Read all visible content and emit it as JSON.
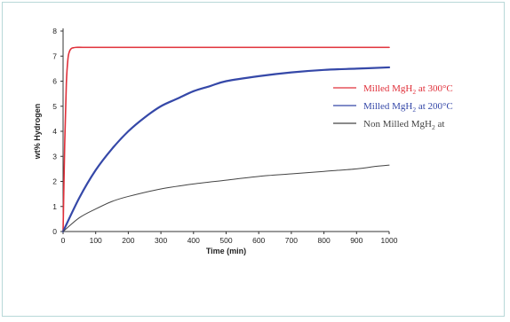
{
  "chart_data": {
    "type": "line",
    "title": "",
    "xlabel": "Time (min)",
    "ylabel": "wt% Hydrogen",
    "xlim": [
      0,
      1000
    ],
    "ylim": [
      0,
      8
    ],
    "x_ticks": [
      "0",
      "100",
      "200",
      "300",
      "400",
      "500",
      "600",
      "700",
      "800",
      "900",
      "1000"
    ],
    "y_ticks": [
      "0",
      "1",
      "2",
      "3",
      "4",
      "5",
      "6",
      "7",
      "8"
    ],
    "grid": false,
    "legend_position": "right",
    "series": [
      {
        "name": "Milled MgH2 at 300°C",
        "legend_main": "Milled MgH",
        "legend_sub": "2",
        "legend_tail": " at 300°C",
        "color": "#e0303a",
        "x": [
          0,
          5,
          10,
          15,
          20,
          25,
          30,
          40,
          60,
          100,
          200,
          400,
          600,
          800,
          1000
        ],
        "y": [
          0,
          3.5,
          5.9,
          6.9,
          7.2,
          7.3,
          7.33,
          7.35,
          7.35,
          7.35,
          7.35,
          7.35,
          7.35,
          7.35,
          7.35
        ]
      },
      {
        "name": "Milled MgH2 at 200°C",
        "legend_main": "Milled MgH",
        "legend_sub": "2",
        "legend_tail": " at 200°C",
        "color": "#3548a8",
        "x": [
          0,
          50,
          100,
          150,
          200,
          250,
          300,
          350,
          400,
          450,
          500,
          600,
          700,
          800,
          900,
          1000
        ],
        "y": [
          0,
          1.35,
          2.45,
          3.3,
          4.0,
          4.55,
          5.0,
          5.3,
          5.6,
          5.8,
          6.0,
          6.2,
          6.35,
          6.45,
          6.5,
          6.55
        ]
      },
      {
        "name": "Non Milled MgH2 at",
        "legend_main": "Non Milled MgH",
        "legend_sub": "2",
        "legend_tail": " at",
        "color": "#444444",
        "x": [
          0,
          50,
          100,
          150,
          200,
          300,
          400,
          500,
          600,
          700,
          800,
          900,
          960,
          1000
        ],
        "y": [
          0,
          0.55,
          0.9,
          1.2,
          1.4,
          1.7,
          1.9,
          2.05,
          2.2,
          2.3,
          2.4,
          2.5,
          2.6,
          2.65
        ]
      }
    ]
  }
}
